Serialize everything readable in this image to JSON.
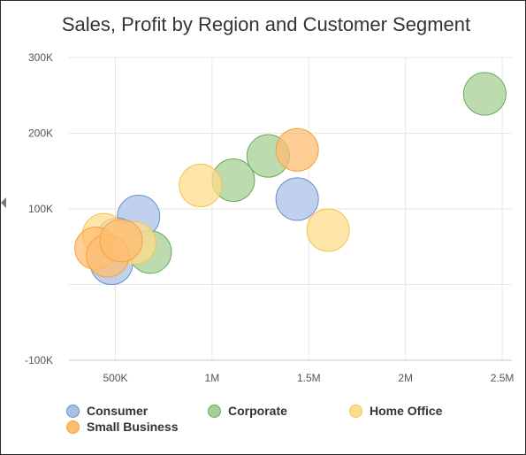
{
  "chart_data": {
    "type": "scatter",
    "title": "Sales, Profit by Region and Customer Segment",
    "xlabel": "",
    "ylabel": "",
    "xlim": [
      260000,
      2550000
    ],
    "ylim": [
      -100000,
      300000
    ],
    "x_ticks": [
      {
        "value": 500000,
        "label": "500K"
      },
      {
        "value": 1000000,
        "label": "1M"
      },
      {
        "value": 1500000,
        "label": "1.5M"
      },
      {
        "value": 2000000,
        "label": "2M"
      },
      {
        "value": 2500000,
        "label": "2.5M"
      }
    ],
    "y_ticks": [
      {
        "value": 300000,
        "label": "300K"
      },
      {
        "value": 200000,
        "label": "200K"
      },
      {
        "value": 100000,
        "label": "100K"
      },
      {
        "value": 0,
        "label": ""
      },
      {
        "value": -100000,
        "label": "-100K"
      }
    ],
    "grid": true,
    "legend_position": "bottom",
    "series": [
      {
        "name": "Consumer",
        "fill": "#a9c1e5",
        "stroke": "#6a8fc9",
        "points": [
          {
            "x": 620000,
            "y": 90000
          },
          {
            "x": 1440000,
            "y": 113000
          },
          {
            "x": 510000,
            "y": 60000
          },
          {
            "x": 480000,
            "y": 28000
          }
        ]
      },
      {
        "name": "Corporate",
        "fill": "#a6d096",
        "stroke": "#6aa956",
        "points": [
          {
            "x": 2410000,
            "y": 252000
          },
          {
            "x": 1290000,
            "y": 170000
          },
          {
            "x": 1110000,
            "y": 138000
          },
          {
            "x": 680000,
            "y": 43000
          }
        ]
      },
      {
        "name": "Home Office",
        "fill": "#fedc8e",
        "stroke": "#f6c34c",
        "points": [
          {
            "x": 940000,
            "y": 131000
          },
          {
            "x": 1600000,
            "y": 72000
          },
          {
            "x": 440000,
            "y": 66000
          },
          {
            "x": 600000,
            "y": 55000
          }
        ]
      },
      {
        "name": "Small Business",
        "fill": "#fdbe72",
        "stroke": "#f0a13c",
        "points": [
          {
            "x": 1440000,
            "y": 178000
          },
          {
            "x": 400000,
            "y": 48000
          },
          {
            "x": 460000,
            "y": 38000
          },
          {
            "x": 530000,
            "y": 58000
          }
        ]
      }
    ]
  },
  "legend": [
    {
      "label": "Consumer",
      "fill": "#a9c1e5",
      "stroke": "#6a8fc9"
    },
    {
      "label": "Corporate",
      "fill": "#a6d096",
      "stroke": "#6aa956"
    },
    {
      "label": "Home Office",
      "fill": "#fedc8e",
      "stroke": "#f6c34c"
    },
    {
      "label": "Small Business",
      "fill": "#fdbe72",
      "stroke": "#f0a13c"
    }
  ]
}
